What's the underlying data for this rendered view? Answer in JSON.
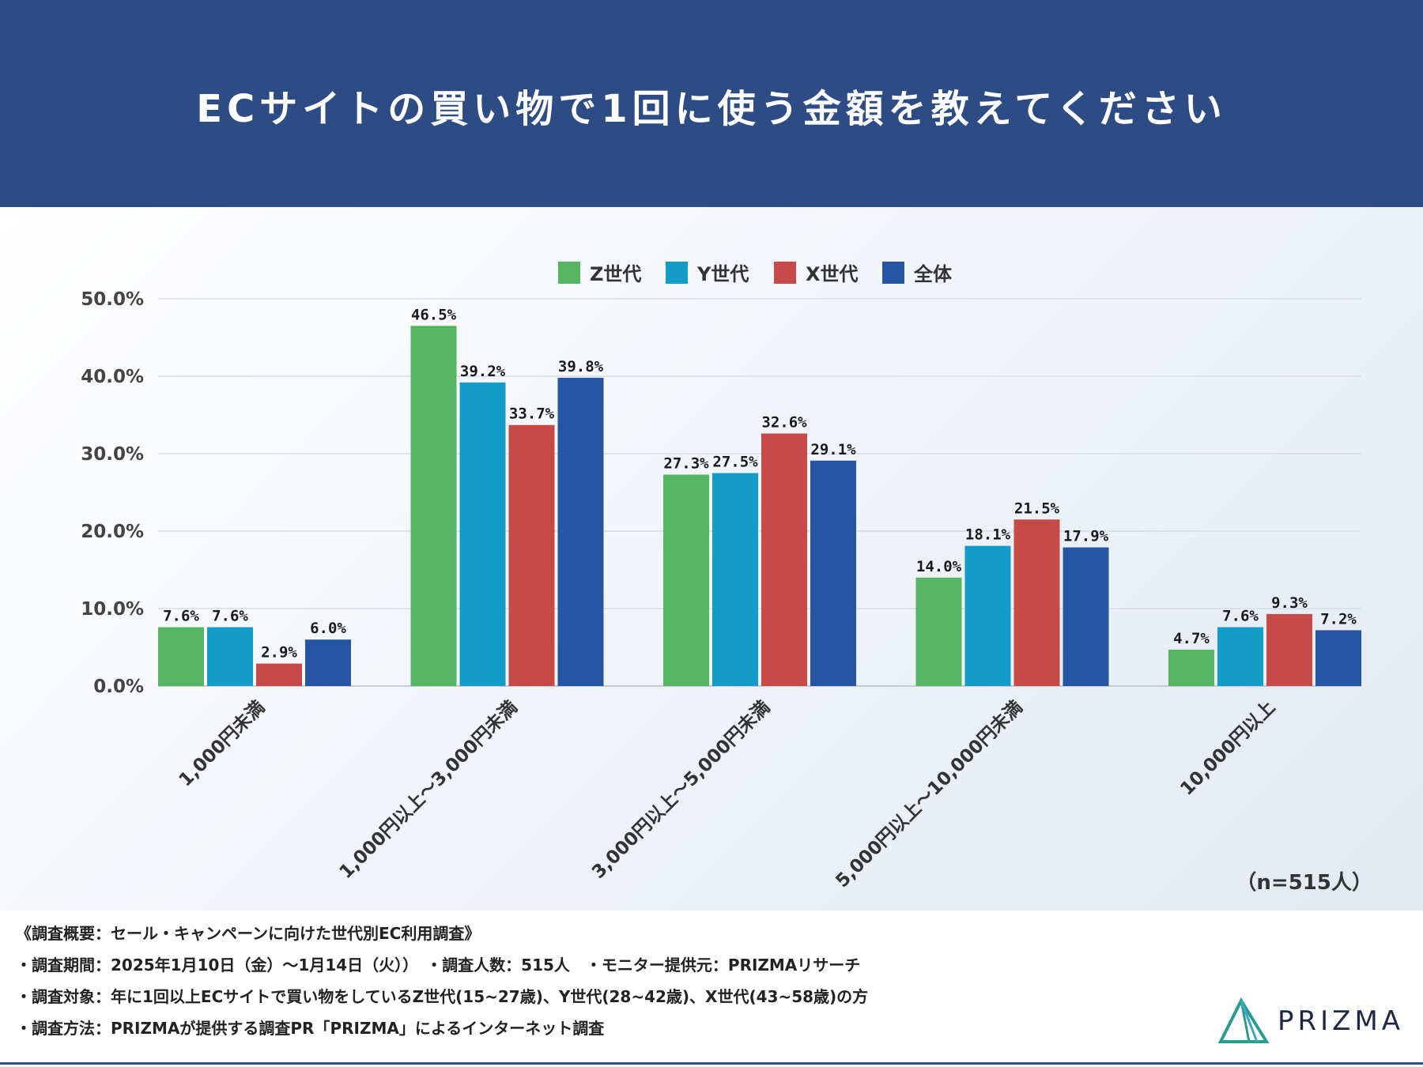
{
  "header": {
    "title": "ECサイトの買い物で1回に使う金額を教えてください"
  },
  "chart_data": {
    "type": "bar",
    "title": "ECサイトの買い物で1回に使う金額を教えてください",
    "categories": [
      "1,000円未満",
      "1,000円以上〜3,000円未満",
      "3,000円以上〜5,000円未満",
      "5,000円以上〜10,000円未満",
      "10,000円以上"
    ],
    "series": [
      {
        "name": "Z世代",
        "color": "#55b562",
        "values": [
          7.6,
          46.5,
          27.3,
          14.0,
          4.7
        ]
      },
      {
        "name": "Y世代",
        "color": "#139cc8",
        "values": [
          7.6,
          39.2,
          27.5,
          18.1,
          7.6
        ]
      },
      {
        "name": "X世代",
        "color": "#c64a48",
        "values": [
          2.9,
          33.7,
          32.6,
          21.5,
          9.3
        ]
      },
      {
        "name": "全体",
        "color": "#2656a3",
        "values": [
          6.0,
          39.8,
          29.1,
          17.9,
          7.2
        ]
      }
    ],
    "yticks": [
      "0.0%",
      "10.0%",
      "20.0%",
      "30.0%",
      "40.0%",
      "50.0%"
    ],
    "ylim": [
      0,
      50
    ],
    "value_suffix": "%",
    "grid": true,
    "legend": "top-center"
  },
  "sample_size": "（n=515人）",
  "notes": [
    "《調査概要：セール・キャンペーンに向けた世代別EC利用調査》",
    "・調査期間：2025年1月10日（金）〜1月14日（火））　・調査人数：515人　・モニター提供元：PRIZMAリサーチ",
    "・調査対象：年に1回以上ECサイトで買い物をしているZ世代(15~27歳)、Y世代(28~42歳)、X世代(43~58歳)の方",
    "・調査方法：PRIZMAが提供する調査PR「PRIZMA」によるインターネット調査"
  ],
  "logo": {
    "text": "PRIZMA",
    "icon": "prism-icon"
  }
}
